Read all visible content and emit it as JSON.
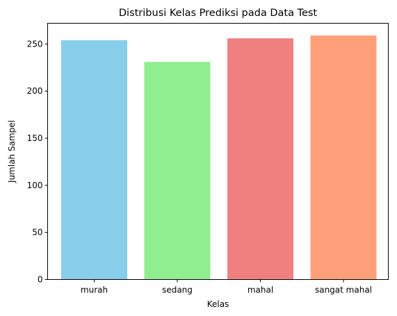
{
  "chart_data": {
    "type": "bar",
    "title": "Distribusi Kelas Prediksi pada Data Test",
    "xlabel": "Kelas",
    "ylabel": "Jumlah Sampel",
    "categories": [
      "murah",
      "sedang",
      "mahal",
      "sangat mahal"
    ],
    "values": [
      254,
      231,
      256,
      259
    ],
    "colors": [
      "#87ceeb",
      "#90ee90",
      "#f08080",
      "#ffa07a"
    ],
    "ylim": [
      0,
      272
    ],
    "yticks": [
      0,
      50,
      100,
      150,
      200,
      250
    ],
    "grid": false,
    "legend": "none"
  }
}
